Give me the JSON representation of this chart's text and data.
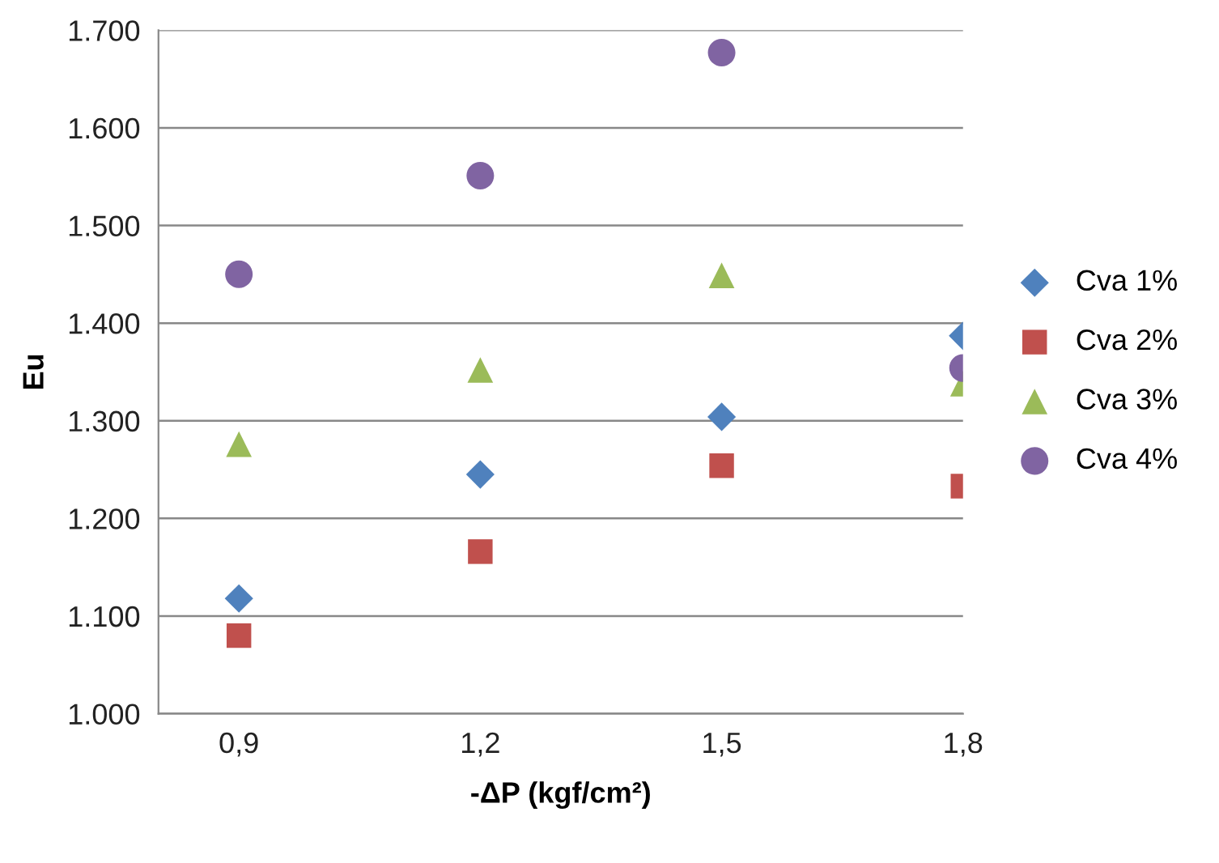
{
  "chart_data": {
    "type": "scatter",
    "xlabel": "-ΔP (kgf/cm²)",
    "ylabel": "Eu",
    "x": [
      0.9,
      1.2,
      1.5,
      1.8
    ],
    "series": [
      {
        "name": "Cva 1%",
        "color": "#4f81bd",
        "marker": "diamond",
        "values": [
          1118,
          1245,
          1304,
          1387
        ]
      },
      {
        "name": "Cva 2%",
        "color": "#c0504d",
        "marker": "square",
        "values": [
          1080,
          1166,
          1254,
          1233
        ]
      },
      {
        "name": "Cva 3%",
        "color": "#9bbb59",
        "marker": "triangle",
        "values": [
          1276,
          1352,
          1449,
          1338
        ]
      },
      {
        "name": "Cva 4%",
        "color": "#8064a2",
        "marker": "circle",
        "values": [
          1450,
          1551,
          1677,
          1354
        ]
      }
    ],
    "xlim": [
      0.8,
      1.8
    ],
    "ylim": [
      1000,
      1700
    ],
    "xticks": [
      {
        "value": 0.9,
        "label": "0,9"
      },
      {
        "value": 1.2,
        "label": "1,2"
      },
      {
        "value": 1.5,
        "label": "1,5"
      },
      {
        "value": 1.8,
        "label": "1,8"
      }
    ],
    "yticks": [
      {
        "value": 1000,
        "label": "1.000"
      },
      {
        "value": 1100,
        "label": "1.100"
      },
      {
        "value": 1200,
        "label": "1.200"
      },
      {
        "value": 1300,
        "label": "1.300"
      },
      {
        "value": 1400,
        "label": "1.400"
      },
      {
        "value": 1500,
        "label": "1.500"
      },
      {
        "value": 1600,
        "label": "1.600"
      },
      {
        "value": 1700,
        "label": "1.700"
      }
    ],
    "grid": "y",
    "legend": "right"
  }
}
